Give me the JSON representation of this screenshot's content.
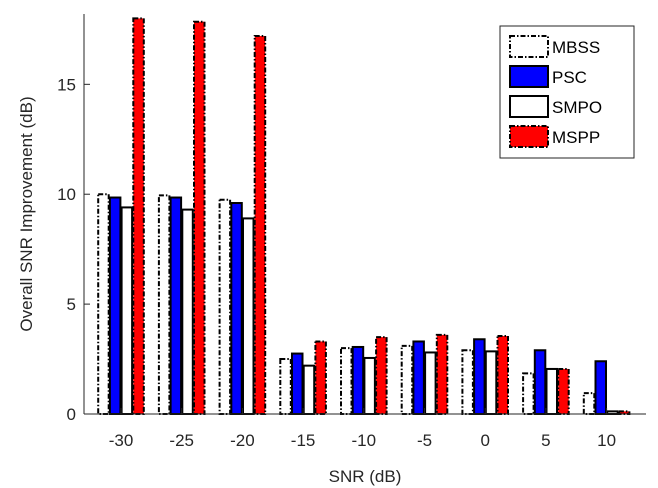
{
  "chart_data": {
    "type": "bar",
    "xlabel": "SNR (dB)",
    "ylabel": "Overall SNR Improvement (dB)",
    "categories": [
      "-30",
      "-25",
      "-20",
      "-15",
      "-10",
      "-5",
      "0",
      "5",
      "10"
    ],
    "ylim": [
      0,
      18.2
    ],
    "yticks": [
      0,
      5,
      10,
      15
    ],
    "grid": false,
    "legend_position": "top-right",
    "series": [
      {
        "name": "MBSS",
        "values": [
          10.0,
          9.95,
          9.75,
          2.5,
          3.0,
          3.1,
          2.9,
          1.85,
          0.95
        ],
        "fill": "#ffffff",
        "stroke": "#000000",
        "dash": "dash-dot"
      },
      {
        "name": "PSC",
        "values": [
          9.85,
          9.85,
          9.6,
          2.75,
          3.05,
          3.3,
          3.4,
          2.9,
          2.4
        ],
        "fill": "#0000ff",
        "stroke": "#000000",
        "dash": "solid"
      },
      {
        "name": "SMPO",
        "values": [
          9.4,
          9.3,
          8.9,
          2.2,
          2.55,
          2.8,
          2.85,
          2.05,
          0.12
        ],
        "fill": "#ffffff",
        "stroke": "#000000",
        "dash": "solid"
      },
      {
        "name": "MSPP",
        "values": [
          18.0,
          17.85,
          17.2,
          3.3,
          3.5,
          3.6,
          3.55,
          2.05,
          0.12
        ],
        "fill": "#ff0000",
        "stroke": "#000000",
        "dash": "dash-dot"
      }
    ]
  }
}
